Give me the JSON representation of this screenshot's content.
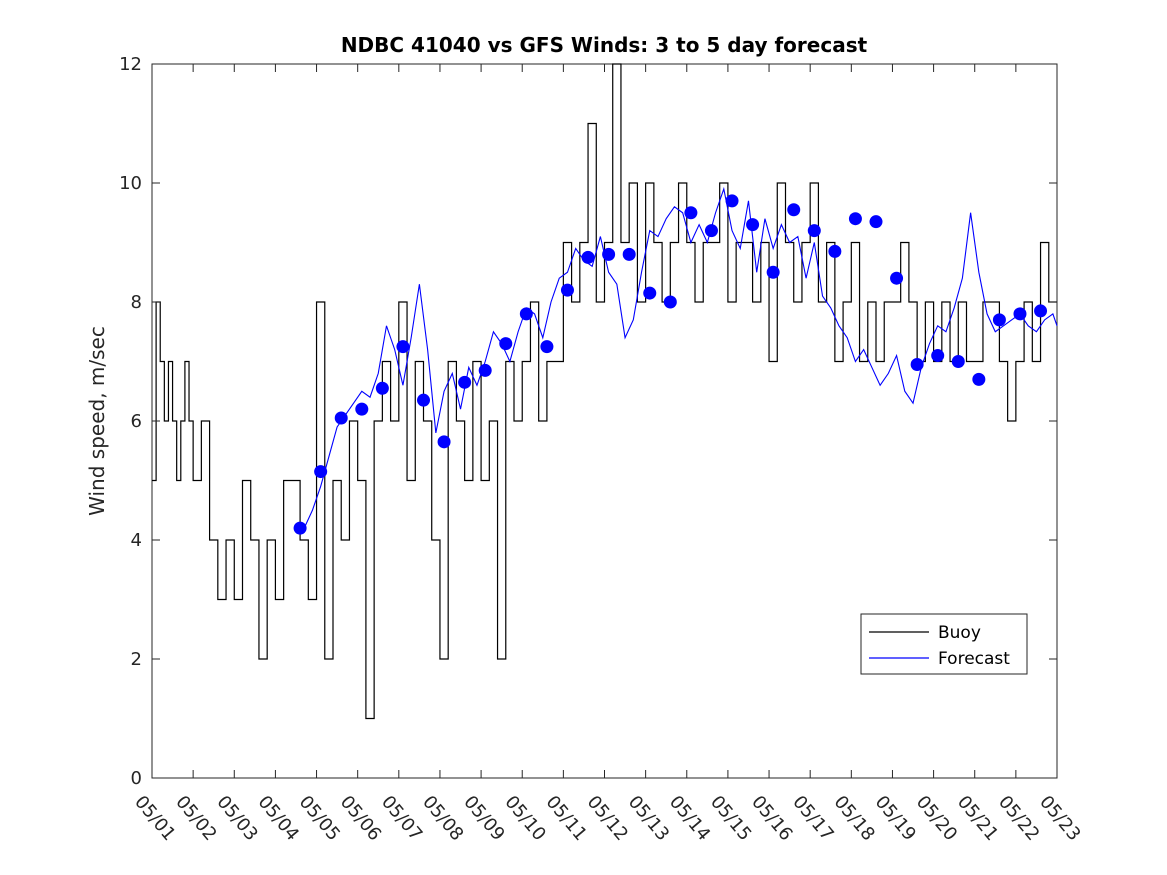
{
  "chart_data": {
    "type": "line",
    "title": "NDBC 41040 vs GFS Winds: 3 to 5 day forecast",
    "xlabel": "",
    "ylabel": "Wind speed, m/sec",
    "xlim": [
      0,
      22
    ],
    "ylim": [
      0,
      12
    ],
    "categories": [
      "05/01",
      "05/02",
      "05/03",
      "05/04",
      "05/05",
      "05/06",
      "05/07",
      "05/08",
      "05/09",
      "05/10",
      "05/11",
      "05/12",
      "05/13",
      "05/14",
      "05/15",
      "05/16",
      "05/17",
      "05/18",
      "05/19",
      "05/20",
      "05/21",
      "05/22",
      "05/23"
    ],
    "yticks": [
      0,
      2,
      4,
      6,
      8,
      10,
      12
    ],
    "legend": {
      "position": "bottom-right",
      "entries": [
        "Buoy",
        "Forecast"
      ]
    },
    "colors": {
      "buoy": "#000000",
      "forecast": "#0000ff"
    },
    "grid": false,
    "series": [
      {
        "name": "Buoy",
        "x": [
          0.0,
          0.1,
          0.2,
          0.3,
          0.4,
          0.5,
          0.6,
          0.7,
          0.8,
          0.9,
          1.0,
          1.2,
          1.4,
          1.6,
          1.8,
          2.0,
          2.2,
          2.4,
          2.6,
          2.8,
          3.0,
          3.2,
          3.4,
          3.6,
          3.8,
          4.0,
          4.2,
          4.4,
          4.6,
          4.8,
          5.0,
          5.1,
          5.2,
          5.4,
          5.6,
          5.8,
          6.0,
          6.2,
          6.4,
          6.6,
          6.8,
          7.0,
          7.2,
          7.4,
          7.6,
          7.8,
          8.0,
          8.2,
          8.4,
          8.6,
          8.8,
          9.0,
          9.2,
          9.4,
          9.6,
          9.8,
          10.0,
          10.2,
          10.4,
          10.6,
          10.8,
          11.0,
          11.2,
          11.4,
          11.6,
          11.8,
          12.0,
          12.2,
          12.4,
          12.6,
          12.8,
          13.0,
          13.2,
          13.4,
          13.6,
          13.8,
          14.0,
          14.2,
          14.4,
          14.6,
          14.8,
          15.0,
          15.2,
          15.4,
          15.6,
          15.8,
          16.0,
          16.2,
          16.4,
          16.6,
          16.8,
          17.0,
          17.2,
          17.4,
          17.6,
          17.8,
          18.0,
          18.2,
          18.4,
          18.6,
          18.8,
          19.0,
          19.2,
          19.4,
          19.6,
          19.8,
          20.0,
          20.2,
          20.4,
          20.6,
          20.8,
          21.0,
          21.2,
          21.4,
          21.6,
          21.8,
          22.0
        ],
        "values": [
          5,
          8,
          7,
          6,
          7,
          6,
          5,
          6,
          7,
          6,
          5,
          6,
          4,
          3,
          4,
          3,
          5,
          4,
          2,
          4,
          3,
          5,
          5,
          4,
          3,
          8,
          2,
          5,
          4,
          6,
          5,
          5,
          1,
          6,
          7,
          6,
          8,
          5,
          7,
          6,
          4,
          2,
          7,
          6,
          5,
          7,
          5,
          6,
          2,
          7,
          6,
          7,
          8,
          6,
          7,
          7,
          9,
          8,
          9,
          11,
          8,
          9,
          12,
          9,
          10,
          8,
          10,
          9,
          8,
          9,
          10,
          9,
          8,
          9,
          9,
          10,
          8,
          9,
          9,
          8,
          9,
          7,
          10,
          9,
          8,
          9,
          10,
          8,
          9,
          7,
          8,
          9,
          7,
          8,
          7,
          8,
          8,
          9,
          8,
          7,
          8,
          7,
          8,
          7,
          8,
          7,
          7,
          8,
          8,
          7,
          6,
          7,
          8,
          7,
          9,
          8,
          8
        ],
        "style": "step"
      },
      {
        "name": "Forecast",
        "x": [
          3.7,
          3.9,
          4.1,
          4.3,
          4.5,
          4.7,
          4.9,
          5.1,
          5.3,
          5.5,
          5.7,
          5.9,
          6.1,
          6.3,
          6.5,
          6.7,
          6.9,
          7.1,
          7.3,
          7.5,
          7.7,
          7.9,
          8.1,
          8.3,
          8.5,
          8.7,
          8.9,
          9.1,
          9.3,
          9.5,
          9.7,
          9.9,
          10.1,
          10.3,
          10.5,
          10.7,
          10.9,
          11.1,
          11.3,
          11.5,
          11.7,
          11.9,
          12.1,
          12.3,
          12.5,
          12.7,
          12.9,
          13.1,
          13.3,
          13.5,
          13.7,
          13.9,
          14.1,
          14.3,
          14.5,
          14.7,
          14.9,
          15.1,
          15.3,
          15.5,
          15.7,
          15.9,
          16.1,
          16.3,
          16.5,
          16.7,
          16.9,
          17.1,
          17.3,
          17.5,
          17.7,
          17.9,
          18.1,
          18.3,
          18.5,
          18.7,
          18.9,
          19.1,
          19.3,
          19.5,
          19.7,
          19.9,
          20.1,
          20.3,
          20.5,
          20.7,
          20.9,
          21.1,
          21.3,
          21.5,
          21.7,
          21.9,
          22.0
        ],
        "values": [
          4.2,
          4.5,
          4.9,
          5.4,
          5.9,
          6.1,
          6.3,
          6.5,
          6.4,
          6.8,
          7.6,
          7.2,
          6.6,
          7.4,
          8.3,
          7.2,
          5.8,
          6.5,
          6.8,
          6.2,
          6.9,
          6.6,
          7.0,
          7.5,
          7.3,
          7.0,
          7.5,
          7.9,
          7.8,
          7.4,
          8.0,
          8.4,
          8.5,
          8.9,
          8.7,
          8.6,
          9.1,
          8.5,
          8.3,
          7.4,
          7.7,
          8.5,
          9.2,
          9.1,
          9.4,
          9.6,
          9.5,
          9.0,
          9.3,
          9.0,
          9.5,
          9.9,
          9.2,
          8.9,
          9.7,
          8.5,
          9.4,
          8.9,
          9.3,
          9.0,
          9.1,
          8.4,
          9.0,
          8.1,
          7.9,
          7.6,
          7.4,
          7.0,
          7.2,
          6.9,
          6.6,
          6.8,
          7.1,
          6.5,
          6.3,
          6.9,
          7.3,
          7.6,
          7.5,
          7.9,
          8.4,
          9.5,
          8.5,
          7.8,
          7.5,
          7.6,
          7.7,
          7.8,
          7.6,
          7.5,
          7.7,
          7.8,
          7.6
        ]
      },
      {
        "name": "",
        "type": "scatter",
        "x": [
          3.6,
          4.1,
          4.6,
          5.1,
          5.6,
          6.1,
          6.6,
          7.1,
          7.6,
          8.1,
          8.6,
          9.1,
          9.6,
          10.1,
          10.6,
          11.1,
          11.6,
          12.1,
          12.6,
          13.1,
          13.6,
          14.1,
          14.6,
          15.1,
          15.6,
          16.1,
          16.6,
          17.1,
          17.6,
          18.1,
          18.6,
          19.1,
          19.6,
          20.1,
          20.6,
          21.1,
          21.6
        ],
        "values": [
          4.2,
          5.15,
          6.05,
          6.2,
          6.55,
          7.25,
          6.35,
          5.65,
          6.65,
          6.85,
          7.3,
          7.8,
          7.25,
          8.2,
          8.75,
          8.8,
          8.8,
          8.15,
          8.0,
          9.5,
          9.2,
          9.7,
          9.3,
          8.5,
          9.55,
          9.2,
          8.85,
          9.4,
          9.35,
          8.4,
          6.95,
          7.1,
          7.0,
          6.7,
          7.7,
          7.8,
          7.85
        ]
      }
    ]
  }
}
